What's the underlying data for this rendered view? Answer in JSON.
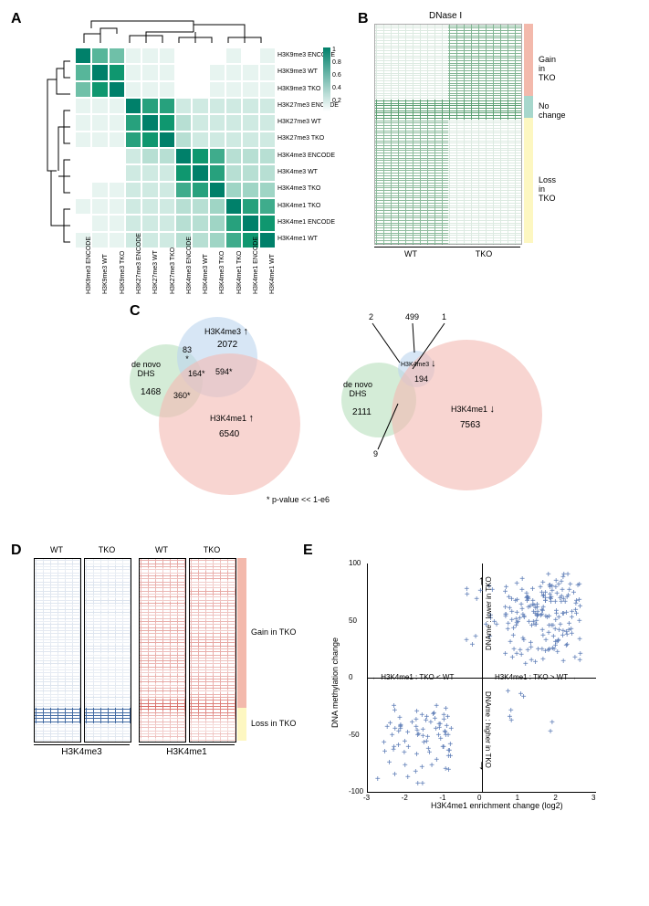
{
  "colors": {
    "heatmap_teal_scale": [
      "#ffffff",
      "#e7f4f0",
      "#cfeae2",
      "#b7dfd3",
      "#9fd5c5",
      "#87cbb7",
      "#6fc0a8",
      "#57b69a",
      "#3fac8c",
      "#27a17d",
      "#0f976f",
      "#00806a"
    ],
    "pink": "#f4b9b2",
    "blue_fill": "#bcd5ef",
    "green_fill": "#b8e0bd",
    "gain_bg": "#f3b9ac",
    "nochange_bg": "#a7d7cc",
    "loss_bg": "#fdf7c1",
    "scatter_point": "#5878b4",
    "heatmapD_blue": "#2f5b9a",
    "heatmapD_red": "#cf4a42",
    "heatmapB_green": "#1b7a3c"
  },
  "panel_labels": {
    "A": "A",
    "B": "B",
    "C": "C",
    "D": "D",
    "E": "E"
  },
  "panelA": {
    "type": "heatmap",
    "labels": [
      "H3K9me3 ENCODE",
      "H3K9me3 WT",
      "H3K9me3 TKO",
      "H3K27me3 ENCODE",
      "H3K27me3 WT",
      "H3K27me3 TKO",
      "H3K4me3 ENCODE",
      "H3K4me3 WT",
      "H3K4me3 TKO",
      "H3K4me1 TKO",
      "H3K4me1 ENCODE",
      "H3K4me1 WT"
    ],
    "matrix": [
      [
        1.0,
        0.62,
        0.58,
        0.07,
        0.06,
        0.05,
        0.03,
        0.03,
        0.04,
        0.05,
        0.04,
        0.05
      ],
      [
        0.62,
        1.0,
        0.9,
        0.08,
        0.07,
        0.06,
        0.04,
        0.04,
        0.05,
        0.06,
        0.05,
        0.06
      ],
      [
        0.58,
        0.9,
        1.0,
        0.08,
        0.07,
        0.06,
        0.04,
        0.04,
        0.05,
        0.06,
        0.05,
        0.06
      ],
      [
        0.07,
        0.08,
        0.08,
        1.0,
        0.85,
        0.8,
        0.22,
        0.2,
        0.18,
        0.18,
        0.18,
        0.18
      ],
      [
        0.06,
        0.07,
        0.07,
        0.85,
        1.0,
        0.92,
        0.24,
        0.22,
        0.2,
        0.18,
        0.18,
        0.18
      ],
      [
        0.05,
        0.06,
        0.06,
        0.8,
        0.92,
        1.0,
        0.24,
        0.22,
        0.2,
        0.18,
        0.18,
        0.18
      ],
      [
        0.03,
        0.04,
        0.04,
        0.22,
        0.24,
        0.24,
        1.0,
        0.9,
        0.72,
        0.28,
        0.26,
        0.26
      ],
      [
        0.03,
        0.04,
        0.04,
        0.2,
        0.22,
        0.22,
        0.9,
        1.0,
        0.78,
        0.3,
        0.28,
        0.28
      ],
      [
        0.04,
        0.05,
        0.05,
        0.18,
        0.2,
        0.2,
        0.72,
        0.78,
        1.0,
        0.4,
        0.32,
        0.32
      ],
      [
        0.05,
        0.06,
        0.06,
        0.18,
        0.18,
        0.18,
        0.28,
        0.3,
        0.4,
        1.0,
        0.78,
        0.76
      ],
      [
        0.04,
        0.05,
        0.05,
        0.18,
        0.18,
        0.18,
        0.26,
        0.28,
        0.32,
        0.78,
        1.0,
        0.9
      ],
      [
        0.05,
        0.06,
        0.06,
        0.18,
        0.18,
        0.18,
        0.26,
        0.28,
        0.32,
        0.76,
        0.9,
        1.0
      ]
    ],
    "colorbar_ticks": [
      "1",
      "0.8",
      "0.6",
      "0.4",
      "0.2"
    ]
  },
  "panelB": {
    "title": "DNase I",
    "columns": [
      "WT",
      "TKO"
    ],
    "annot": [
      {
        "label": "Gain in TKO",
        "frac": 0.33,
        "color": "#f3b9ac"
      },
      {
        "label": "No change",
        "frac": 0.1,
        "color": "#a7d7cc"
      },
      {
        "label": "Loss in TKO",
        "frac": 0.57,
        "color": "#fdf7c1"
      }
    ]
  },
  "panelC": {
    "left": {
      "sets": {
        "green": {
          "label": "de novo\nDHS",
          "n": 1468
        },
        "blue": {
          "label": "H3K4me3",
          "dir": "↑",
          "n": 2072
        },
        "pink": {
          "label": "H3K4me1",
          "dir": "↑",
          "n": 6540
        }
      },
      "intersections": {
        "green_blue": 83,
        "green_pink": 360,
        "blue_pink": 594,
        "all": 164
      },
      "sig_marks": [
        "green_blue",
        "green_pink",
        "blue_pink",
        "all"
      ]
    },
    "right": {
      "sets": {
        "green": {
          "label": "de novo\nDHS",
          "n": 2111
        },
        "blue": {
          "label": "H3K4me3",
          "dir": "↓",
          "n": 499
        },
        "pink": {
          "label": "H3K4me1",
          "dir": "↓",
          "n": 7563
        }
      },
      "intersections": {
        "green_blue": 2,
        "green_pink": 9,
        "blue_pink": 194,
        "all": 1
      }
    },
    "footnote": "* p-value << 1-e6"
  },
  "panelD": {
    "columns": [
      "WT",
      "TKO",
      "WT",
      "TKO"
    ],
    "groups": [
      "H3K4me3",
      "H3K4me1"
    ],
    "annot": [
      {
        "label": "Gain in TKO",
        "frac": 0.82,
        "color": "#f3b9ac"
      },
      {
        "label": "Loss in TKO",
        "frac": 0.18,
        "color": "#fdf7c1"
      }
    ]
  },
  "panelE": {
    "type": "scatter",
    "xlabel": "H3K4me1 enrichment change (log2)",
    "ylabel": "DNA methylation change",
    "xlim": [
      -3,
      3
    ],
    "ylim": [
      -100,
      100
    ],
    "xticks": [
      -3,
      -2,
      -1,
      0,
      1,
      2,
      3
    ],
    "yticks": [
      -100,
      -50,
      0,
      50,
      100
    ],
    "quadrant_labels": {
      "right": "H3K4me1 : TKO > WT",
      "left": "H3K4me1 : TKO < WT",
      "up": "DNAme : lower in TKO",
      "down": "DNAme : higher in TKO"
    },
    "points": []
  }
}
